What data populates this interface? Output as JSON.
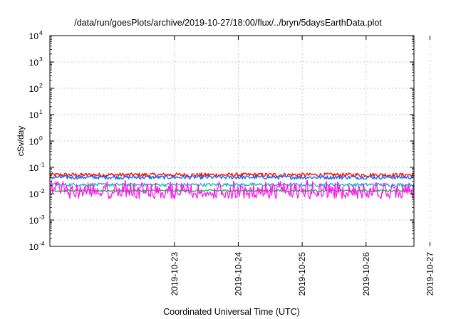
{
  "chart_data": {
    "type": "line",
    "title": "/data/run/goesPlots/archive/2019-10-27/18:00/flux/../bryn/5daysEarthData.plot",
    "xlabel": "Coordinated Universal Time (UTC)",
    "ylabel": "cSv/day",
    "x_ticks": [
      "2019-10-23",
      "2019-10-24",
      "2019-10-25",
      "2019-10-26",
      "2019-10-27"
    ],
    "x_range_days": [
      -1.95,
      3.75
    ],
    "y_scale": "log",
    "y_ticks": [
      {
        "base": "10",
        "exp": "-4",
        "value": 0.0001
      },
      {
        "base": "10",
        "exp": "-3",
        "value": 0.001
      },
      {
        "base": "10",
        "exp": "-2",
        "value": 0.01
      },
      {
        "base": "10",
        "exp": "-1",
        "value": 0.1
      },
      {
        "base": "10",
        "exp": "0",
        "value": 1
      },
      {
        "base": "10",
        "exp": "1",
        "value": 10
      },
      {
        "base": "10",
        "exp": "2",
        "value": 100
      },
      {
        "base": "10",
        "exp": "3",
        "value": 1000
      },
      {
        "base": "10",
        "exp": "4",
        "value": 10000
      }
    ],
    "ylim": [
      0.0001,
      10000
    ],
    "grid": true,
    "series": [
      {
        "color": "#ee1111",
        "base": 0.052,
        "spread": 0.18
      },
      {
        "color": "#2266ee",
        "base": 0.042,
        "spread": 0.16
      },
      {
        "color": "#20b8c8",
        "base": 0.022,
        "spread": 0.14
      },
      {
        "color": "#22bb55",
        "base": 0.013,
        "spread": 0.1
      },
      {
        "color": "#ff11ee",
        "base": 0.009,
        "spread": 0.3
      }
    ]
  }
}
